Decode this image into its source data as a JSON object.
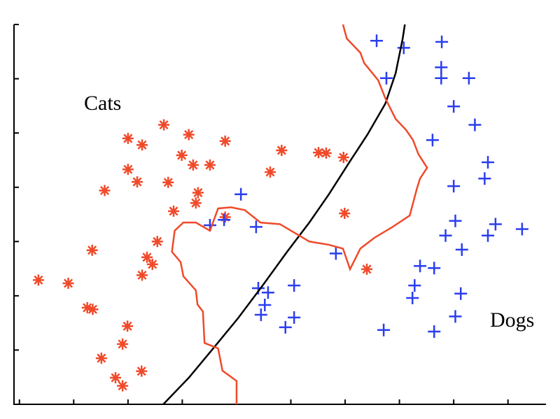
{
  "chart_data": {
    "type": "scatter",
    "xlim": [
      -0.1,
      9.7
    ],
    "ylim": [
      0,
      7
    ],
    "xticks": [
      0,
      1,
      2,
      3,
      4,
      5,
      6,
      7,
      8,
      9
    ],
    "yticks": [
      0,
      1,
      2,
      3,
      4,
      5,
      6,
      7
    ],
    "annotations": [
      "Cats",
      "Dogs"
    ],
    "series": [
      {
        "type": "scatter",
        "marker": "asterisk",
        "color": "#f04a2a",
        "x": [
          0.35,
          0.9,
          1.25,
          1.35,
          1.34,
          1.57,
          2.0,
          2.26,
          2.66,
          3.12,
          2.0,
          2.17,
          2.74,
          2.99,
          3.2,
          3.51,
          3.79,
          3.29,
          3.25,
          2.84,
          3.79,
          2.54,
          2.35,
          2.45,
          2.26,
          1.99,
          1.9,
          1.51,
          1.77,
          1.9,
          2.25,
          4.62,
          4.83,
          5.51,
          5.65,
          5.97,
          5.99,
          6.4
        ],
        "values": [
          2.29,
          2.23,
          1.78,
          1.75,
          2.84,
          3.94,
          4.9,
          4.78,
          5.15,
          4.97,
          4.33,
          4.1,
          4.09,
          4.59,
          4.41,
          4.41,
          4.85,
          3.9,
          3.71,
          3.56,
          3.45,
          3.0,
          2.71,
          2.58,
          2.38,
          1.44,
          1.11,
          0.85,
          0.49,
          0.34,
          0.61,
          4.28,
          4.68,
          4.64,
          4.63,
          4.55,
          3.52,
          2.49
        ]
      },
      {
        "type": "scatter",
        "marker": "plus",
        "color": "#2a3ef0",
        "x": [
          6.58,
          7.08,
          7.78,
          7.77,
          7.77,
          6.76,
          8.28,
          8.0,
          8.39,
          7.61,
          8.63,
          8.57,
          8.0,
          8.03,
          8.77,
          9.26,
          7.85,
          8.63,
          8.15,
          7.38,
          7.64,
          7.28,
          7.24,
          8.13,
          8.03,
          7.64,
          6.71,
          4.08,
          3.51,
          3.77,
          4.36,
          5.83,
          4.4,
          4.58,
          5.06,
          4.52,
          4.45,
          5.06,
          4.9
        ],
        "values": [
          6.7,
          6.57,
          6.68,
          6.21,
          6.01,
          6.01,
          6.01,
          5.49,
          5.15,
          4.87,
          4.46,
          4.16,
          4.02,
          3.38,
          3.32,
          3.23,
          3.11,
          3.11,
          2.85,
          2.55,
          2.51,
          2.19,
          1.96,
          2.04,
          1.62,
          1.34,
          1.37,
          3.87,
          3.3,
          3.4,
          3.27,
          2.78,
          2.14,
          2.06,
          2.19,
          1.83,
          1.65,
          1.6,
          1.42
        ]
      },
      {
        "type": "line",
        "color": "#000000",
        "x": [
          2.65,
          3.12,
          3.57,
          4.03,
          4.48,
          4.93,
          5.34,
          5.7,
          6.09,
          6.41,
          6.74,
          6.93,
          7.06,
          7.1
        ],
        "values": [
          0,
          0.49,
          1.03,
          1.59,
          2.19,
          2.81,
          3.35,
          3.87,
          4.48,
          4.97,
          5.54,
          6.1,
          6.74,
          7.0
        ]
      },
      {
        "type": "line",
        "color": "#f04a2a",
        "x": [
          4.0,
          4.0,
          3.74,
          3.66,
          3.41,
          3.38,
          3.28,
          3.25,
          3.02,
          2.97,
          2.81,
          2.86,
          3.02,
          3.25,
          3.51,
          3.66,
          3.9,
          4.15,
          4.44,
          4.8,
          5.34,
          5.7,
          5.96,
          6.09,
          6.28,
          6.54,
          6.86,
          7.19,
          7.32,
          7.38,
          7.51,
          7.35,
          7.25,
          7.12,
          6.93,
          6.74,
          6.61,
          6.35,
          6.28,
          6.03,
          5.96
        ],
        "values": [
          0,
          0.43,
          0.62,
          1.03,
          1.13,
          1.71,
          1.84,
          2.1,
          2.36,
          2.62,
          2.81,
          3.2,
          3.35,
          3.35,
          3.2,
          3.61,
          3.63,
          3.58,
          3.35,
          3.32,
          3.0,
          2.94,
          2.87,
          2.49,
          2.87,
          3.07,
          3.26,
          3.48,
          3.97,
          4.16,
          4.36,
          4.61,
          4.87,
          5.06,
          5.26,
          5.64,
          5.97,
          6.29,
          6.48,
          6.74,
          7.0
        ]
      }
    ]
  }
}
